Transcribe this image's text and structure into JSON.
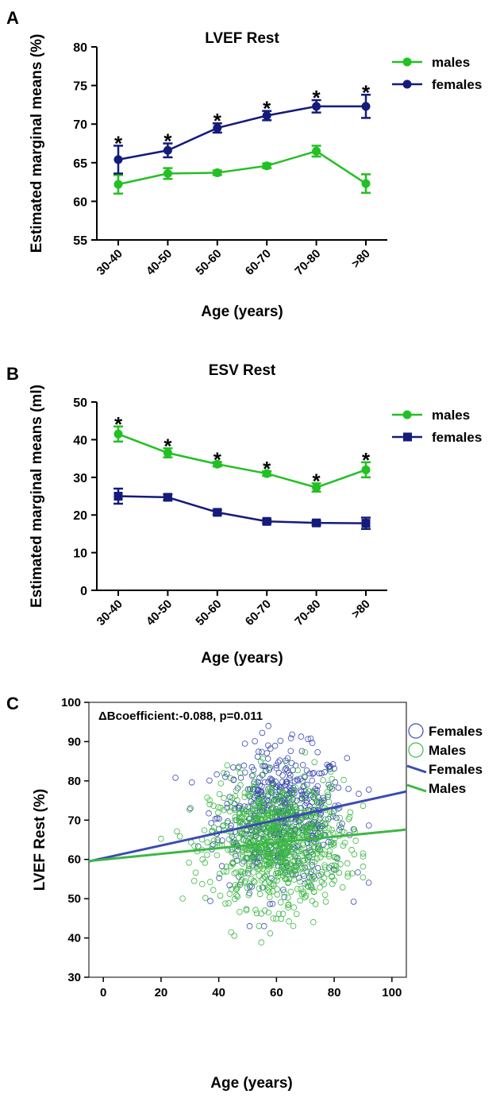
{
  "colors": {
    "males": "#22c022",
    "females": "#141b7a",
    "scatter_females": "#3a4bb0",
    "scatter_males": "#3cb844",
    "axis": "#000000"
  },
  "chart_data": [
    {
      "panel": "A",
      "type": "line",
      "title": "LVEF Rest",
      "xlabel": "Age (years)",
      "ylabel": "Estimated marginal means (%)",
      "categories": [
        "30-40",
        "40-50",
        "50-60",
        "60-70",
        "70-80",
        ">80"
      ],
      "ylim": [
        55,
        80
      ],
      "yticks": [
        55,
        60,
        65,
        70,
        75,
        80
      ],
      "legend_position": "top-right",
      "significance_marker": "*",
      "significant_categories": [
        "30-40",
        "40-50",
        "50-60",
        "60-70",
        "70-80",
        ">80"
      ],
      "series": [
        {
          "name": "males",
          "marker": "circle",
          "color": "#22c022",
          "values": [
            62.2,
            63.6,
            63.7,
            64.6,
            66.5,
            62.3
          ],
          "errors": [
            1.2,
            0.7,
            0.3,
            0.3,
            0.7,
            1.2
          ]
        },
        {
          "name": "females",
          "marker": "circle",
          "color": "#141b7a",
          "values": [
            65.4,
            66.6,
            69.5,
            71.1,
            72.3,
            72.3
          ],
          "errors": [
            1.8,
            0.9,
            0.6,
            0.6,
            0.8,
            1.5
          ]
        }
      ]
    },
    {
      "panel": "B",
      "type": "line",
      "title": "ESV Rest",
      "xlabel": "Age (years)",
      "ylabel": "Estimated marginal means (ml)",
      "categories": [
        "30-40",
        "40-50",
        "50-60",
        "60-70",
        "70-80",
        ">80"
      ],
      "ylim": [
        0,
        50
      ],
      "yticks": [
        0,
        10,
        20,
        30,
        40,
        50
      ],
      "legend_position": "top-right",
      "significance_marker": "*",
      "significant_categories": [
        "30-40",
        "40-50",
        "50-60",
        "60-70",
        "70-80",
        ">80"
      ],
      "series": [
        {
          "name": "males",
          "marker": "circle",
          "color": "#22c022",
          "values": [
            41.5,
            36.5,
            33.5,
            31.0,
            27.3,
            32.0
          ],
          "errors": [
            2.0,
            1.2,
            0.6,
            0.6,
            1.1,
            2.0
          ]
        },
        {
          "name": "females",
          "marker": "square",
          "color": "#141b7a",
          "values": [
            25.0,
            24.7,
            20.7,
            18.3,
            17.9,
            17.8
          ],
          "errors": [
            2.0,
            0.8,
            0.6,
            0.5,
            0.6,
            1.5
          ]
        }
      ]
    },
    {
      "panel": "C",
      "type": "scatter",
      "annotation": "ΔBcoefficient:-0.088, p=0.011",
      "xlabel": "Age (years)",
      "ylabel": "LVEF Rest (%)",
      "xlim": [
        -5,
        105
      ],
      "ylim": [
        30,
        100
      ],
      "xticks": [
        0,
        20,
        40,
        60,
        80,
        100
      ],
      "yticks": [
        30,
        40,
        50,
        60,
        70,
        80,
        90,
        100
      ],
      "legend_position": "right",
      "legend": [
        "Females",
        "Males",
        "Females",
        "Males"
      ],
      "fit_lines": [
        {
          "name": "Females",
          "color": "#3a4bb0",
          "x": [
            -5,
            105
          ],
          "y": [
            59.5,
            77.3
          ]
        },
        {
          "name": "Males",
          "color": "#3cb844",
          "x": [
            -5,
            105
          ],
          "y": [
            59.6,
            67.6
          ]
        }
      ],
      "scatter": {
        "Females": {
          "n_approx": 550,
          "color": "#3a4bb0",
          "x_range": [
            25,
            92
          ],
          "y_range": [
            43,
            94
          ],
          "x_center": 62,
          "y_center": 71
        },
        "Males": {
          "n_approx": 850,
          "color": "#3cb844",
          "x_range": [
            20,
            90
          ],
          "y_range": [
            37,
            88
          ],
          "x_center": 60,
          "y_center": 64
        }
      }
    }
  ]
}
